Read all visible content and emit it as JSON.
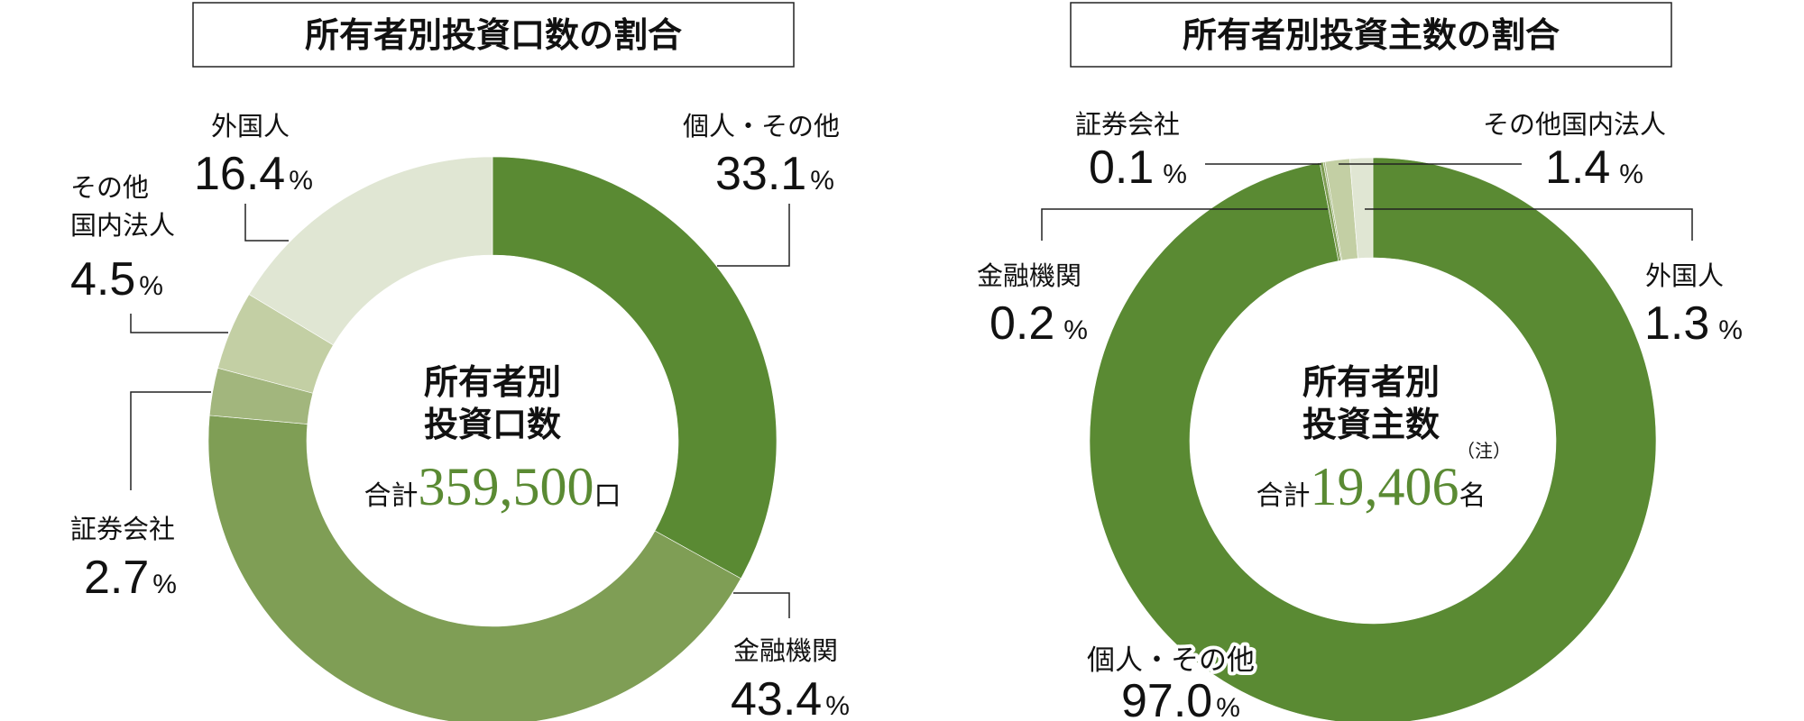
{
  "colors": [
    "#5a8a33",
    "#7f9e55",
    "#a2b67d",
    "#c3cfa4",
    "#e0e6d3"
  ],
  "chart_data": [
    {
      "type": "pie",
      "variant": "donut",
      "title": "所有者別投資口数の割合",
      "center_title_line1": "所有者別",
      "center_title_line2": "投資口数",
      "total_label": "合計",
      "total_value": "359,500",
      "total_unit": "口",
      "categories": [
        "個人・その他",
        "金融機関",
        "証券会社",
        "その他国内法人",
        "外国人"
      ],
      "label_lines": [
        [
          "個人・その他"
        ],
        [
          "金融機関"
        ],
        [
          "証券会社"
        ],
        [
          "その他",
          "国内法人"
        ],
        [
          "外国人"
        ]
      ],
      "values": [
        33.1,
        43.4,
        2.7,
        4.5,
        16.4
      ],
      "value_labels": [
        "33.1",
        "43.4",
        "2.7",
        "4.5",
        "16.4"
      ],
      "unit": "%"
    },
    {
      "type": "pie",
      "variant": "donut",
      "title": "所有者別投資主数の割合",
      "center_title_line1": "所有者別",
      "center_title_line2": "投資主数",
      "note": "（注）",
      "total_label": "合計",
      "total_value": "19,406",
      "total_unit": "名",
      "categories": [
        "個人・その他",
        "金融機関",
        "証券会社",
        "その他国内法人",
        "外国人"
      ],
      "values": [
        97.0,
        0.2,
        0.1,
        1.4,
        1.3
      ],
      "value_labels": [
        "97.0",
        "0.2",
        "0.1",
        "1.4",
        "1.3"
      ],
      "unit": "%"
    }
  ]
}
